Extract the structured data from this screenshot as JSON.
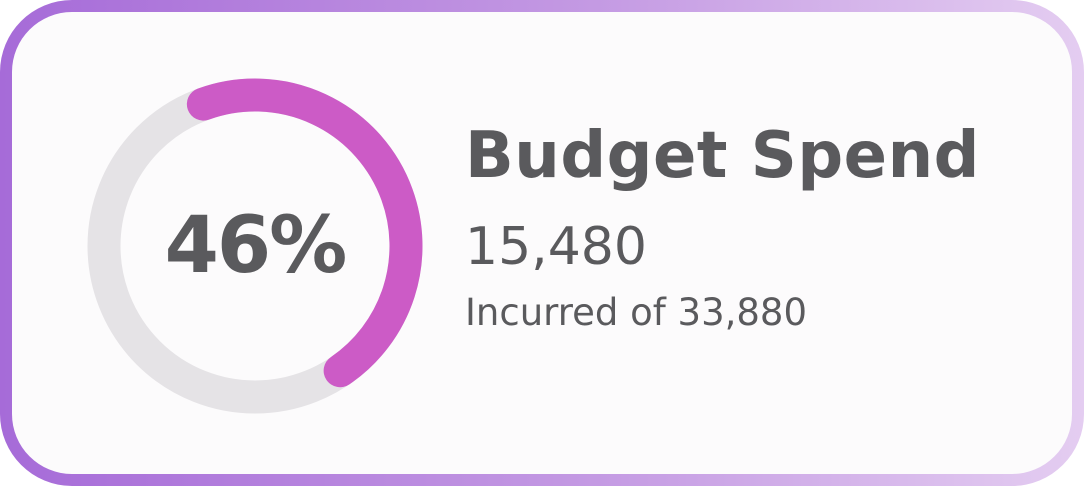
{
  "widget": {
    "title": "Budget Spend",
    "amount": "15,480",
    "subtitle": "Incurred of 33,880",
    "percent_label": "46%",
    "progress_fraction": 0.46
  },
  "colors": {
    "text": "#5a5a5d",
    "track": "#e5e3e6",
    "progress": "#cc5bc6",
    "border_start": "#a66bd8",
    "border_end": "#e4cdf1",
    "card_background": "#fcfbfc"
  }
}
